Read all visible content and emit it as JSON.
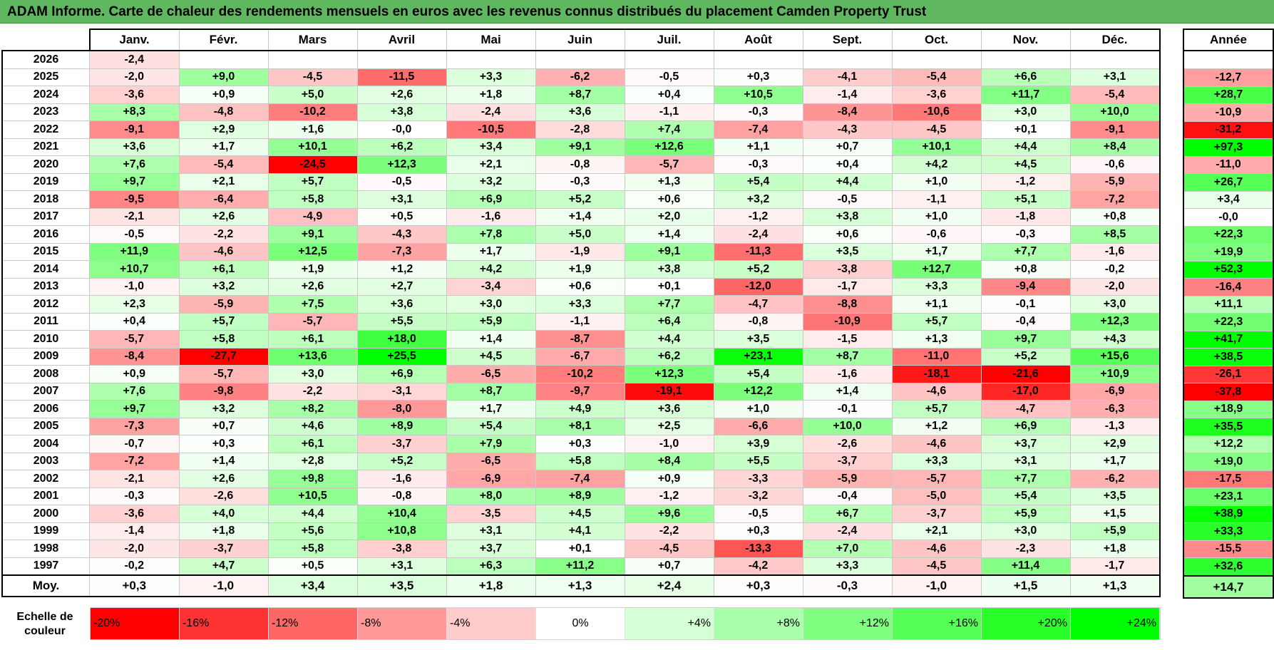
{
  "title": "ADAM Informe. Carte de chaleur des rendements mensuels en euros avec les revenus connus distribués du placement Camden Property Trust",
  "months": [
    "Janv.",
    "Févr.",
    "Mars",
    "Avril",
    "Mai",
    "Juin",
    "Juil.",
    "Août",
    "Sept.",
    "Oct.",
    "Nov.",
    "Déc."
  ],
  "year_header": "Année",
  "avg_label": "Moy.",
  "scale_label": "Echelle de couleur",
  "colors": {
    "negative_extreme": "#ff0000",
    "neutral": "#ffffff",
    "positive_extreme": "#00ff00"
  },
  "chart_data": {
    "type": "heatmap",
    "title": "ADAM Informe. Carte de chaleur des rendements mensuels en euros avec les revenus connus distribués du placement Camden Property Trust",
    "color_scale": {
      "min": -20,
      "mid": 0,
      "max": 24
    },
    "rows": [
      {
        "year": "2026",
        "values": [
          "-2,4",
          "",
          "",
          "",
          "",
          "",
          "",
          "",
          "",
          "",
          "",
          ""
        ],
        "annual": ""
      },
      {
        "year": "2025",
        "values": [
          "-2,0",
          "+9,0",
          "-4,5",
          "-11,5",
          "+3,3",
          "-6,2",
          "-0,5",
          "+0,3",
          "-4,1",
          "-5,4",
          "+6,6",
          "+3,1"
        ],
        "annual": "-12,7"
      },
      {
        "year": "2024",
        "values": [
          "-3,6",
          "+0,9",
          "+5,0",
          "+2,6",
          "+1,8",
          "+8,7",
          "+0,4",
          "+10,5",
          "-1,4",
          "-3,6",
          "+11,7",
          "-5,4"
        ],
        "annual": "+28,7"
      },
      {
        "year": "2023",
        "values": [
          "+8,3",
          "-4,8",
          "-10,2",
          "+3,8",
          "-2,4",
          "+3,6",
          "-1,1",
          "-0,3",
          "-8,4",
          "-10,6",
          "+3,0",
          "+10,0"
        ],
        "annual": "-10,9"
      },
      {
        "year": "2022",
        "values": [
          "-9,1",
          "+2,9",
          "+1,6",
          "-0,0",
          "-10,5",
          "-2,8",
          "+7,4",
          "-7,4",
          "-4,3",
          "-4,5",
          "+0,1",
          "-9,1"
        ],
        "annual": "-31,2"
      },
      {
        "year": "2021",
        "values": [
          "+3,6",
          "+1,7",
          "+10,1",
          "+6,2",
          "+3,4",
          "+9,1",
          "+12,6",
          "+1,1",
          "+0,7",
          "+10,1",
          "+4,4",
          "+8,4"
        ],
        "annual": "+97,3"
      },
      {
        "year": "2020",
        "values": [
          "+7,6",
          "-5,4",
          "-24,5",
          "+12,3",
          "+2,1",
          "-0,8",
          "-5,7",
          "-0,3",
          "+0,4",
          "+4,2",
          "+4,5",
          "-0,6"
        ],
        "annual": "-11,0"
      },
      {
        "year": "2019",
        "values": [
          "+9,7",
          "+2,1",
          "+5,7",
          "-0,5",
          "+3,2",
          "-0,3",
          "+1,3",
          "+5,4",
          "+4,4",
          "+1,0",
          "-1,2",
          "-5,9"
        ],
        "annual": "+26,7"
      },
      {
        "year": "2018",
        "values": [
          "-9,5",
          "-6,4",
          "+5,8",
          "+3,1",
          "+6,9",
          "+5,2",
          "+0,6",
          "+3,2",
          "-0,5",
          "-1,1",
          "+5,1",
          "-7,2"
        ],
        "annual": "+3,4"
      },
      {
        "year": "2017",
        "values": [
          "-2,1",
          "+2,6",
          "-4,9",
          "+0,5",
          "-1,6",
          "+1,4",
          "+2,0",
          "-1,2",
          "+3,8",
          "+1,0",
          "-1,8",
          "+0,8"
        ],
        "annual": "-0,0"
      },
      {
        "year": "2016",
        "values": [
          "-0,5",
          "-2,2",
          "+9,1",
          "-4,3",
          "+7,8",
          "+5,0",
          "+1,4",
          "-2,4",
          "+0,6",
          "-0,6",
          "-0,3",
          "+8,5"
        ],
        "annual": "+22,3"
      },
      {
        "year": "2015",
        "values": [
          "+11,9",
          "-4,6",
          "+12,5",
          "-7,3",
          "+1,7",
          "-1,9",
          "+9,1",
          "-11,3",
          "+3,5",
          "+1,7",
          "+7,7",
          "-1,6"
        ],
        "annual": "+19,9"
      },
      {
        "year": "2014",
        "values": [
          "+10,7",
          "+6,1",
          "+1,9",
          "+1,2",
          "+4,2",
          "+1,9",
          "+3,8",
          "+5,2",
          "-3,8",
          "+12,7",
          "+0,8",
          "-0,2"
        ],
        "annual": "+52,3"
      },
      {
        "year": "2013",
        "values": [
          "-1,0",
          "+3,2",
          "+2,6",
          "+2,7",
          "-3,4",
          "+0,6",
          "+0,1",
          "-12,0",
          "-1,7",
          "+3,3",
          "-9,4",
          "-2,0"
        ],
        "annual": "-16,4"
      },
      {
        "year": "2012",
        "values": [
          "+2,3",
          "-5,9",
          "+7,5",
          "+3,6",
          "+3,0",
          "+3,3",
          "+7,7",
          "-4,7",
          "-8,8",
          "+1,1",
          "-0,1",
          "+3,0"
        ],
        "annual": "+11,1"
      },
      {
        "year": "2011",
        "values": [
          "+0,4",
          "+5,7",
          "-5,7",
          "+5,5",
          "+5,9",
          "-1,1",
          "+6,4",
          "-0,8",
          "-10,9",
          "+5,7",
          "-0,4",
          "+12,3"
        ],
        "annual": "+22,3"
      },
      {
        "year": "2010",
        "values": [
          "-5,7",
          "+5,8",
          "+6,1",
          "+18,0",
          "+1,4",
          "-8,7",
          "+4,4",
          "+3,5",
          "-1,5",
          "+1,3",
          "+9,7",
          "+4,3"
        ],
        "annual": "+41,7"
      },
      {
        "year": "2009",
        "values": [
          "-8,4",
          "-27,7",
          "+13,6",
          "+25,5",
          "+4,5",
          "-6,7",
          "+6,2",
          "+23,1",
          "+8,7",
          "-11,0",
          "+5,2",
          "+15,6"
        ],
        "annual": "+38,5"
      },
      {
        "year": "2008",
        "values": [
          "+0,9",
          "-5,7",
          "+3,0",
          "+6,9",
          "-6,5",
          "-10,2",
          "+12,3",
          "+5,4",
          "-1,6",
          "-18,1",
          "-21,6",
          "+10,9"
        ],
        "annual": "-26,1"
      },
      {
        "year": "2007",
        "values": [
          "+7,6",
          "-9,8",
          "-2,2",
          "-3,1",
          "+8,7",
          "-9,7",
          "-19,1",
          "+12,2",
          "+1,4",
          "-4,6",
          "-17,0",
          "-6,9"
        ],
        "annual": "-37,8"
      },
      {
        "year": "2006",
        "values": [
          "+9,7",
          "+3,2",
          "+8,2",
          "-8,0",
          "+1,7",
          "+4,9",
          "+3,6",
          "+1,0",
          "-0,1",
          "+5,7",
          "-4,7",
          "-6,3"
        ],
        "annual": "+18,9"
      },
      {
        "year": "2005",
        "values": [
          "-7,3",
          "+0,7",
          "+4,6",
          "+8,9",
          "+5,4",
          "+8,1",
          "+2,5",
          "-6,6",
          "+10,0",
          "+1,2",
          "+6,9",
          "-1,3"
        ],
        "annual": "+35,5"
      },
      {
        "year": "2004",
        "values": [
          "-0,7",
          "+0,3",
          "+6,1",
          "-3,7",
          "+7,9",
          "+0,3",
          "-1,0",
          "+3,9",
          "-2,6",
          "-4,6",
          "+3,7",
          "+2,9"
        ],
        "annual": "+12,2"
      },
      {
        "year": "2003",
        "values": [
          "-7,2",
          "+1,4",
          "+2,8",
          "+5,2",
          "-6,5",
          "+5,8",
          "+8,4",
          "+5,5",
          "-3,7",
          "+3,3",
          "+3,1",
          "+1,7"
        ],
        "annual": "+19,0"
      },
      {
        "year": "2002",
        "values": [
          "-2,1",
          "+2,6",
          "+9,8",
          "-1,6",
          "-6,9",
          "-7,4",
          "+0,9",
          "-3,3",
          "-5,9",
          "-5,7",
          "+7,7",
          "-6,2"
        ],
        "annual": "-17,5"
      },
      {
        "year": "2001",
        "values": [
          "-0,3",
          "-2,6",
          "+10,5",
          "-0,8",
          "+8,0",
          "+8,9",
          "-1,2",
          "-3,2",
          "-0,4",
          "-5,0",
          "+5,4",
          "+3,5"
        ],
        "annual": "+23,1"
      },
      {
        "year": "2000",
        "values": [
          "-3,6",
          "+4,0",
          "+4,4",
          "+10,4",
          "-3,5",
          "+4,5",
          "+9,6",
          "-0,5",
          "+6,7",
          "-3,7",
          "+5,9",
          "+1,5"
        ],
        "annual": "+38,9"
      },
      {
        "year": "1999",
        "values": [
          "-1,4",
          "+1,8",
          "+5,6",
          "+10,8",
          "+3,1",
          "+4,1",
          "-2,2",
          "+0,3",
          "-2,4",
          "+2,1",
          "+3,0",
          "+5,9"
        ],
        "annual": "+33,3"
      },
      {
        "year": "1998",
        "values": [
          "-2,0",
          "-3,7",
          "+5,8",
          "-3,8",
          "+3,7",
          "+0,1",
          "-4,5",
          "-13,3",
          "+7,0",
          "-4,6",
          "-2,3",
          "+1,8"
        ],
        "annual": "-15,5"
      },
      {
        "year": "1997",
        "values": [
          "-0,2",
          "+4,7",
          "+0,5",
          "+3,1",
          "+6,3",
          "+11,2",
          "+0,7",
          "-4,2",
          "+3,3",
          "-4,5",
          "+11,4",
          "-1,7"
        ],
        "annual": "+32,6"
      }
    ],
    "average": {
      "values": [
        "+0,3",
        "-1,0",
        "+3,4",
        "+3,5",
        "+1,8",
        "+1,3",
        "+2,4",
        "+0,3",
        "-0,3",
        "-1,0",
        "+1,5",
        "+1,3"
      ],
      "annual": "+14,7"
    },
    "scale_steps": [
      {
        "label": "-20%",
        "value": -20
      },
      {
        "label": "-16%",
        "value": -16
      },
      {
        "label": "-12%",
        "value": -12
      },
      {
        "label": "-8%",
        "value": -8
      },
      {
        "label": "-4%",
        "value": -4
      },
      {
        "label": "0%",
        "value": 0
      },
      {
        "label": "+4%",
        "value": 4
      },
      {
        "label": "+8%",
        "value": 8
      },
      {
        "label": "+12%",
        "value": 12
      },
      {
        "label": "+16%",
        "value": 16
      },
      {
        "label": "+20%",
        "value": 20
      },
      {
        "label": "+24%",
        "value": 24
      }
    ]
  }
}
